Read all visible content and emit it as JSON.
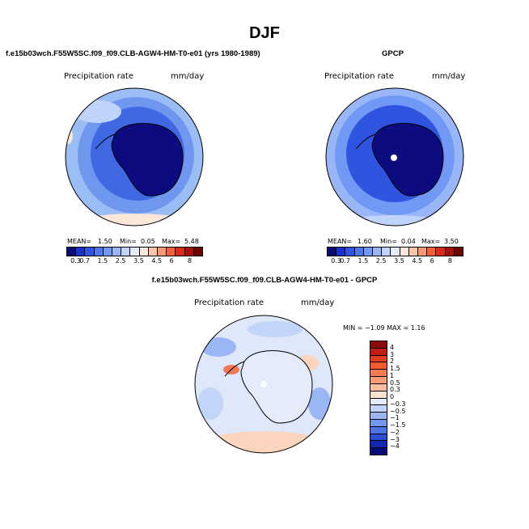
{
  "title": "DJF",
  "panel_left": {
    "title": "f.e15b03wch.F55W5SC.f09_f09.CLB-AGW4-HM-T0-e01 (yrs 1980-1989)",
    "variable": "Precipitation rate",
    "units": "mm/day",
    "mean_label": "MEAN=",
    "mean_value": "1.50",
    "min_label": "Min=",
    "min_value": "0.05",
    "max_label": "Max=",
    "max_value": "5.48"
  },
  "panel_right": {
    "title": "GPCP",
    "variable": "Precipitation rate",
    "units": "mm/day",
    "mean_label": "MEAN=",
    "mean_value": "1.60",
    "min_label": "Min=",
    "min_value": "0.04",
    "max_label": "Max=",
    "max_value": "3.50"
  },
  "panel_diff": {
    "title": "f.e15b03wch.F55W5SC.f09_f09.CLB-AGW4-HM-T0-e01 - GPCP",
    "variable": "Precipitation rate",
    "units": "mm/day",
    "minmax_text": "MIN =  −1.09 MAX =   1.16"
  },
  "colorbar_abs": {
    "ticks": [
      "0.3",
      "0.7",
      "1",
      "1.5",
      "2",
      "2.5",
      "3",
      "3.5",
      "4",
      "4.5",
      "5",
      "6",
      "7",
      "8"
    ],
    "shown_ticks": [
      "0.3",
      "0.7",
      "1.5",
      "2.5",
      "3.5",
      "4.5",
      "6",
      "8"
    ],
    "colors": [
      "#0a0a78",
      "#1a2fc8",
      "#2f55e0",
      "#4f78ee",
      "#7198f4",
      "#98b6f8",
      "#c0d4fb",
      "#e3ecfd",
      "#fde6da",
      "#fcc5ac",
      "#f89872",
      "#f0613a",
      "#d92a1c",
      "#a80f0f",
      "#6e0505"
    ]
  },
  "colorbar_diff": {
    "labels": [
      "4",
      "3",
      "2",
      "1.5",
      "1",
      "0.5",
      "0.3",
      "0",
      "−0.3",
      "−0.5",
      "−1",
      "−1.5",
      "−2",
      "−3",
      "−4"
    ],
    "colors": [
      "#8c0a0a",
      "#c01e12",
      "#e43c1e",
      "#f25a30",
      "#f77b50",
      "#fa9d76",
      "#fcbf9f",
      "#fde2d2",
      "#e4ecfc",
      "#c2d4f8",
      "#9ab6f4",
      "#7396ee",
      "#4e74e4",
      "#2c4fd2",
      "#1228b0",
      "#0a0a78"
    ]
  },
  "map_colors": {
    "ocean_far": "#9bbdf5",
    "ocean_mid": "#6f97ee",
    "ocean_near": "#3f68e2",
    "antarctica": "#0c0c80",
    "diff_base": "#dfe8fb",
    "diff_pos": "#fcd5bf",
    "diff_neg": "#9ab6f4",
    "diff_red": "#f07a55"
  }
}
